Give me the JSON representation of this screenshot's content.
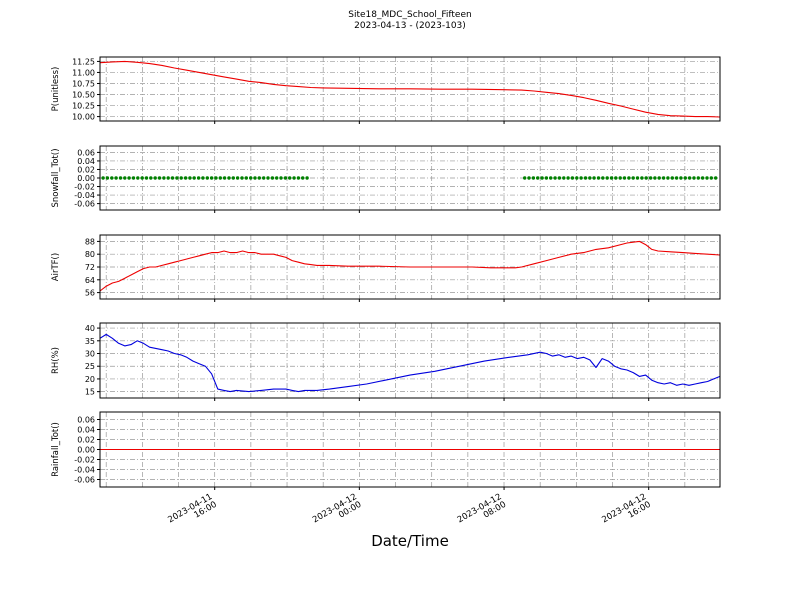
{
  "figure": {
    "title": "Site18_MDC_School_Fifteen",
    "subtitle": "2023-04-13 - (2023-103)",
    "xlabel": "Date/Time",
    "background": "#ffffff"
  },
  "style": {
    "grid_color": "#999999",
    "grid_dash": "5 2 1 2",
    "axis_color": "#000000",
    "red": "#ee0000",
    "blue": "#0000dd",
    "green": "#008000"
  },
  "xaxis": {
    "minor_step": 0.05833,
    "major_ticks": [
      {
        "pos": 0.185,
        "date": "2023-04-11",
        "time": "16:00"
      },
      {
        "pos": 0.4183,
        "date": "2023-04-12",
        "time": "00:00"
      },
      {
        "pos": 0.6517,
        "date": "2023-04-12",
        "time": "08:00"
      },
      {
        "pos": 0.885,
        "date": "2023-04-12",
        "time": "16:00"
      }
    ]
  },
  "chart_data": [
    {
      "type": "line",
      "ylabel": "P(unitless)",
      "color": "#ee0000",
      "ylim": [
        9.9,
        11.35
      ],
      "yticks": [
        "10.00",
        "10.25",
        "10.50",
        "10.75",
        "11.00",
        "11.25"
      ],
      "x": [
        0,
        0.02,
        0.04,
        0.06,
        0.08,
        0.1,
        0.12,
        0.14,
        0.16,
        0.18,
        0.2,
        0.22,
        0.24,
        0.26,
        0.28,
        0.3,
        0.32,
        0.34,
        0.36,
        0.4,
        0.45,
        0.5,
        0.55,
        0.6,
        0.65,
        0.68,
        0.7,
        0.72,
        0.74,
        0.76,
        0.78,
        0.8,
        0.82,
        0.84,
        0.86,
        0.88,
        0.9,
        0.92,
        0.94,
        0.96,
        0.98,
        1.0
      ],
      "y": [
        11.22,
        11.24,
        11.25,
        11.23,
        11.2,
        11.16,
        11.1,
        11.05,
        11.0,
        10.95,
        10.9,
        10.85,
        10.8,
        10.77,
        10.73,
        10.7,
        10.68,
        10.66,
        10.65,
        10.64,
        10.63,
        10.63,
        10.62,
        10.62,
        10.61,
        10.6,
        10.58,
        10.55,
        10.52,
        10.48,
        10.43,
        10.37,
        10.3,
        10.24,
        10.17,
        10.1,
        10.05,
        10.02,
        10.01,
        10.0,
        10.0,
        9.99
      ]
    },
    {
      "type": "scatter",
      "ylabel": "Snowfall_Tot()",
      "color": "#008000",
      "ylim": [
        -0.075,
        0.075
      ],
      "yticks": [
        "-0.06",
        "-0.04",
        "-0.02",
        "0.00",
        "0.02",
        "0.04",
        "0.06"
      ],
      "value": 0.0,
      "segments": [
        [
          0.005,
          0.335
        ],
        [
          0.685,
          0.995
        ]
      ],
      "marker_step": 0.007
    },
    {
      "type": "line",
      "ylabel": "AirTF()",
      "color": "#ee0000",
      "ylim": [
        52,
        92
      ],
      "yticks": [
        "56",
        "64",
        "72",
        "80",
        "88"
      ],
      "x": [
        0,
        0.01,
        0.02,
        0.03,
        0.04,
        0.05,
        0.06,
        0.07,
        0.08,
        0.09,
        0.1,
        0.11,
        0.12,
        0.13,
        0.14,
        0.15,
        0.16,
        0.17,
        0.18,
        0.19,
        0.2,
        0.21,
        0.22,
        0.23,
        0.24,
        0.25,
        0.26,
        0.27,
        0.28,
        0.29,
        0.3,
        0.31,
        0.32,
        0.33,
        0.34,
        0.35,
        0.37,
        0.4,
        0.45,
        0.5,
        0.55,
        0.6,
        0.63,
        0.65,
        0.67,
        0.68,
        0.7,
        0.72,
        0.74,
        0.76,
        0.78,
        0.8,
        0.82,
        0.84,
        0.85,
        0.86,
        0.87,
        0.88,
        0.89,
        0.9,
        0.92,
        0.94,
        0.96,
        0.98,
        1.0
      ],
      "y": [
        57,
        60,
        62,
        63,
        65,
        67,
        69,
        71,
        72,
        72,
        73,
        74,
        75,
        76,
        77,
        78,
        79,
        80,
        81,
        81,
        82,
        81,
        81,
        82,
        81,
        81,
        80,
        80,
        80,
        79,
        78,
        76,
        75,
        74,
        73.5,
        73,
        73,
        72.5,
        72.5,
        72,
        72,
        72,
        71.5,
        71.5,
        71.5,
        72,
        74,
        76,
        78,
        80,
        81,
        83,
        84,
        86,
        87,
        87.5,
        88,
        86,
        83,
        82,
        81.5,
        81,
        80.5,
        80,
        79.5
      ]
    },
    {
      "type": "line",
      "ylabel": "RH(%)",
      "color": "#0000dd",
      "ylim": [
        12.5,
        42
      ],
      "yticks": [
        "15",
        "20",
        "25",
        "30",
        "35",
        "40"
      ],
      "x": [
        0,
        0.01,
        0.02,
        0.03,
        0.04,
        0.05,
        0.06,
        0.07,
        0.08,
        0.09,
        0.1,
        0.11,
        0.12,
        0.13,
        0.14,
        0.15,
        0.16,
        0.17,
        0.18,
        0.19,
        0.2,
        0.21,
        0.22,
        0.24,
        0.26,
        0.28,
        0.3,
        0.31,
        0.32,
        0.33,
        0.35,
        0.37,
        0.4,
        0.43,
        0.46,
        0.5,
        0.54,
        0.58,
        0.62,
        0.66,
        0.69,
        0.71,
        0.72,
        0.73,
        0.74,
        0.75,
        0.76,
        0.77,
        0.78,
        0.79,
        0.8,
        0.81,
        0.82,
        0.83,
        0.84,
        0.85,
        0.86,
        0.87,
        0.88,
        0.89,
        0.9,
        0.91,
        0.92,
        0.93,
        0.94,
        0.95,
        0.96,
        0.97,
        0.98,
        0.99,
        1.0
      ],
      "y": [
        36,
        37.5,
        36,
        34,
        33,
        33.5,
        35,
        34,
        32.5,
        32,
        31.5,
        31,
        30,
        29.5,
        28.5,
        27,
        26,
        25,
        22,
        16,
        15.5,
        15,
        15.5,
        15,
        15.5,
        16,
        16,
        15.5,
        15,
        15.5,
        15.5,
        16,
        17,
        18,
        19.5,
        21.5,
        23,
        25,
        27,
        28.5,
        29.5,
        30.5,
        30,
        29,
        29.5,
        28.5,
        29,
        28,
        28.5,
        27.5,
        24.5,
        28,
        27,
        25,
        24,
        23.5,
        22.5,
        21,
        21.5,
        19.5,
        18.5,
        18,
        18.5,
        17.5,
        18,
        17.5,
        18,
        18.5,
        19,
        20,
        21
      ]
    },
    {
      "type": "hline",
      "ylabel": "Rainfall_Tot()",
      "color": "#ee0000",
      "ylim": [
        -0.075,
        0.075
      ],
      "yticks": [
        "-0.06",
        "-0.04",
        "-0.02",
        "0.00",
        "0.02",
        "0.04",
        "0.06"
      ],
      "value": 0.0
    }
  ]
}
